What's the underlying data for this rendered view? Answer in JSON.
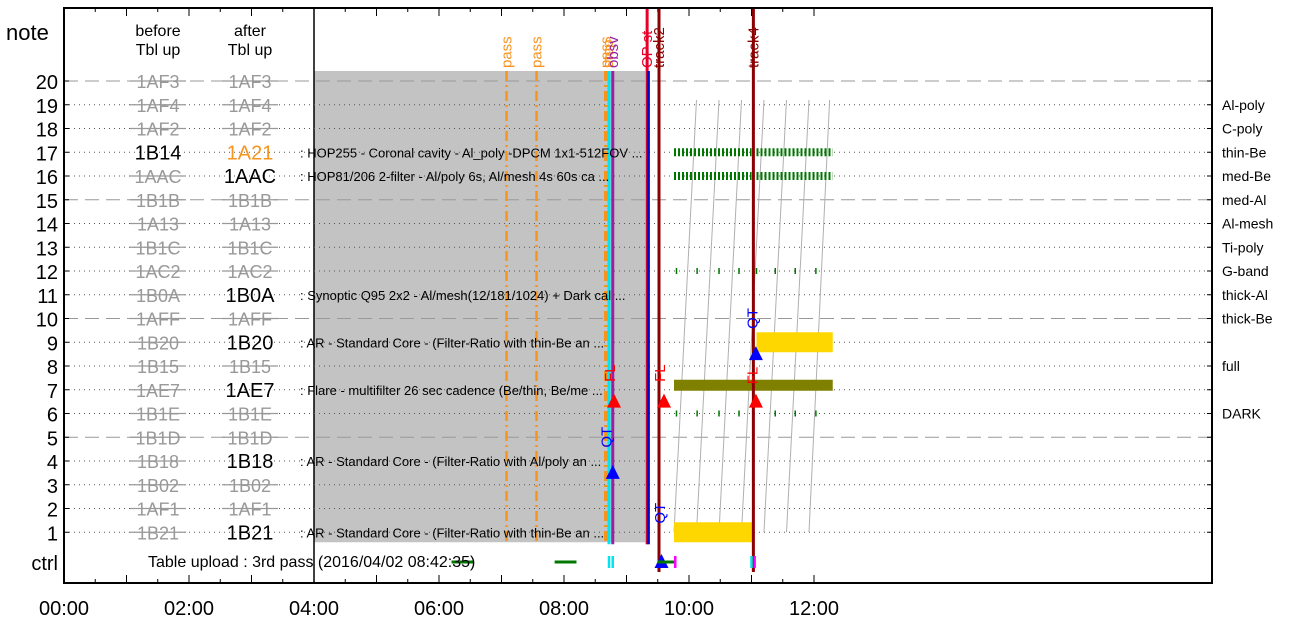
{
  "chart_data": {
    "type": "timeline",
    "y_axis_label": "note",
    "ctrl_label": "ctrl",
    "row_numbers": [
      20,
      19,
      18,
      17,
      16,
      15,
      14,
      13,
      12,
      11,
      10,
      9,
      8,
      7,
      6,
      5,
      4,
      3,
      2,
      1
    ],
    "col_headers": [
      {
        "line1": "before",
        "line2": "Tbl up"
      },
      {
        "line1": "after",
        "line2": "Tbl up"
      }
    ],
    "rows": [
      {
        "n": 20,
        "before": "1AF3",
        "before_state": "struck",
        "after": "1AF3",
        "after_state": "struck",
        "desc": ""
      },
      {
        "n": 19,
        "before": "1AF4",
        "before_state": "struck",
        "after": "1AF4",
        "after_state": "struck",
        "desc": ""
      },
      {
        "n": 18,
        "before": "1AF2",
        "before_state": "struck",
        "after": "1AF2",
        "after_state": "struck",
        "desc": ""
      },
      {
        "n": 17,
        "before": "1B14",
        "before_state": "active",
        "after": "1A21",
        "after_state": "changed",
        "desc": ": HOP255 - Coronal cavity - Al_poly -DPCM 1x1-512FOV ..."
      },
      {
        "n": 16,
        "before": "1AAC",
        "before_state": "struck",
        "after": "1AAC",
        "after_state": "active",
        "desc": ": HOP81/206 2-filter - Al/poly 6s, Al/mesh 4s 60s ca ..."
      },
      {
        "n": 15,
        "before": "1B1B",
        "before_state": "struck",
        "after": "1B1B",
        "after_state": "struck",
        "desc": ""
      },
      {
        "n": 14,
        "before": "1A13",
        "before_state": "struck",
        "after": "1A13",
        "after_state": "struck",
        "desc": ""
      },
      {
        "n": 13,
        "before": "1B1C",
        "before_state": "struck",
        "after": "1B1C",
        "after_state": "struck",
        "desc": ""
      },
      {
        "n": 12,
        "before": "1AC2",
        "before_state": "struck",
        "after": "1AC2",
        "after_state": "struck",
        "desc": ""
      },
      {
        "n": 11,
        "before": "1B0A",
        "before_state": "struck",
        "after": "1B0A",
        "after_state": "active",
        "desc": ": Synoptic Q95 2x2 - Al/mesh(12/181/1024) + Dark cal ..."
      },
      {
        "n": 10,
        "before": "1AFF",
        "before_state": "struck",
        "after": "1AFF",
        "after_state": "struck",
        "desc": ""
      },
      {
        "n": 9,
        "before": "1B20",
        "before_state": "struck",
        "after": "1B20",
        "after_state": "active",
        "desc": ": AR - Standard Core - (Filter-Ratio with thin-Be an ..."
      },
      {
        "n": 8,
        "before": "1B15",
        "before_state": "struck",
        "after": "1B15",
        "after_state": "struck",
        "desc": ""
      },
      {
        "n": 7,
        "before": "1AE7",
        "before_state": "struck",
        "after": "1AE7",
        "after_state": "active",
        "desc": ": Flare - multifilter 26 sec cadence (Be/thin, Be/me ..."
      },
      {
        "n": 6,
        "before": "1B1E",
        "before_state": "struck",
        "after": "1B1E",
        "after_state": "struck",
        "desc": ""
      },
      {
        "n": 5,
        "before": "1B1D",
        "before_state": "struck",
        "after": "1B1D",
        "after_state": "struck",
        "desc": ""
      },
      {
        "n": 4,
        "before": "1B18",
        "before_state": "struck",
        "after": "1B18",
        "after_state": "active",
        "desc": ": AR - Standard Core - (Filter-Ratio with Al/poly an ..."
      },
      {
        "n": 3,
        "before": "1B02",
        "before_state": "struck",
        "after": "1B02",
        "after_state": "struck",
        "desc": ""
      },
      {
        "n": 2,
        "before": "1AF1",
        "before_state": "struck",
        "after": "1AF1",
        "after_state": "struck",
        "desc": ""
      },
      {
        "n": 1,
        "before": "1B21",
        "before_state": "struck",
        "after": "1B21",
        "after_state": "active",
        "desc": ": AR - Standard Core - (Filter-Ratio with thin-Be an ..."
      }
    ],
    "dashed_rows": [
      20,
      15,
      10,
      5
    ],
    "ctrl_text": "Table upload : 3rd pass (2016/04/02 08:42:35)",
    "x_range_hours": [
      0,
      12.3
    ],
    "x_tick_labels": [
      "00:00",
      "02:00",
      "04:00",
      "06:00",
      "08:00",
      "10:00",
      "12:00"
    ],
    "x_tick_hours": [
      0,
      2,
      4,
      6,
      8,
      10,
      12
    ],
    "shaded_range_hours": [
      4.0,
      9.3
    ],
    "filter_labels": [
      {
        "n": 19,
        "text": "Al-poly"
      },
      {
        "n": 18,
        "text": "C-poly"
      },
      {
        "n": 17,
        "text": "thin-Be"
      },
      {
        "n": 16,
        "text": "med-Be"
      },
      {
        "n": 15,
        "text": "med-Al"
      },
      {
        "n": 14,
        "text": "Al-mesh"
      },
      {
        "n": 13,
        "text": "Ti-poly"
      },
      {
        "n": 12,
        "text": "G-band"
      },
      {
        "n": 11,
        "text": "thick-Al"
      },
      {
        "n": 10,
        "text": "thick-Be"
      },
      {
        "n": 8,
        "text": "full"
      },
      {
        "n": 6,
        "text": "DARK"
      }
    ],
    "events": [
      {
        "t": 7.08,
        "label": "pass",
        "color": "#f7941d",
        "style": "dashdot"
      },
      {
        "t": 7.56,
        "label": "pass",
        "color": "#f7941d",
        "style": "dashdot"
      },
      {
        "t": 8.66,
        "label": "pass",
        "color": "#f7941d",
        "style": "dashdot"
      },
      {
        "t": 8.7,
        "label": "stop",
        "color": "#f7941d",
        "style": "dashdot"
      },
      {
        "t": 8.72,
        "label": "",
        "color": "#00e5ee",
        "style": "solid"
      },
      {
        "t": 8.78,
        "label": "obsv",
        "color": "#9b1fa3",
        "style": "solid"
      },
      {
        "t": 9.33,
        "label": "OP st",
        "color": "#e8002a",
        "style": "solid"
      },
      {
        "t": 9.35,
        "label": "",
        "color": "#0000cc",
        "style": "solid"
      },
      {
        "t": 9.52,
        "label": "track2",
        "color": "#8b0000",
        "style": "solid"
      },
      {
        "t": 11.03,
        "label": "track4",
        "color": "#8b0000",
        "style": "solid"
      }
    ],
    "triangles": [
      {
        "t": 8.8,
        "n": 6.5,
        "color": "#ff0000"
      },
      {
        "t": 8.78,
        "n": 3.5,
        "color": "#0000ff"
      },
      {
        "t": 9.6,
        "n": 6.5,
        "color": "#ff0000"
      },
      {
        "t": 11.07,
        "n": 6.5,
        "color": "#ff0000"
      },
      {
        "t": 11.07,
        "n": 8.5,
        "color": "#0000ff"
      },
      {
        "t": 9.56,
        "n": 0.0,
        "color": "#0000ff"
      }
    ],
    "rotated_markers": [
      {
        "t": 8.72,
        "n": 7.7,
        "label": "FL",
        "color": "#ff0000"
      },
      {
        "t": 8.66,
        "n": 5.0,
        "label": "QT",
        "color": "#0000ff"
      },
      {
        "t": 9.52,
        "n": 7.7,
        "label": "FL",
        "color": "#ff0000"
      },
      {
        "t": 9.52,
        "n": 1.8,
        "label": "QT",
        "color": "#0000ff"
      },
      {
        "t": 11.0,
        "n": 7.6,
        "label": "FL",
        "color": "#ff0000"
      },
      {
        "t": 11.0,
        "n": 10.0,
        "label": "QT",
        "color": "#0000ff"
      }
    ],
    "bars": [
      {
        "t0": 9.76,
        "t1": 11.02,
        "n": 1,
        "color": "#ffd700"
      },
      {
        "t0": 11.08,
        "t1": 12.3,
        "n": 9,
        "color": "#ffd700"
      },
      {
        "t0": 9.76,
        "t1": 12.3,
        "n": 7,
        "color": "#808000"
      }
    ],
    "tick_rows": [
      {
        "t0": 9.76,
        "t1": 11.0,
        "n": 17,
        "color": "#007700"
      },
      {
        "t0": 11.08,
        "t1": 12.3,
        "n": 17,
        "color": "#007700"
      },
      {
        "t0": 9.76,
        "t1": 11.0,
        "n": 16,
        "color": "#007700"
      },
      {
        "t0": 11.08,
        "t1": 12.3,
        "n": 16,
        "color": "#007700"
      }
    ],
    "sparse_ticks": [
      {
        "n": 12,
        "times": [
          9.8,
          10.13,
          10.48,
          10.8,
          11.08,
          11.38,
          11.7,
          12.03
        ],
        "color": "#007700"
      },
      {
        "n": 6,
        "times": [
          9.8,
          10.13,
          10.48,
          10.8,
          11.38,
          11.7,
          12.03
        ],
        "color": "#007700"
      }
    ],
    "sawtooth": {
      "t0": 9.76,
      "t1": 12.2,
      "period": 0.36,
      "color": "#b0b0b0"
    },
    "ctrl_segments": [
      {
        "t0": 6.2,
        "t1": 6.55,
        "color": "#007700"
      },
      {
        "t0": 7.85,
        "t1": 8.2,
        "color": "#007700"
      },
      {
        "t0": 9.5,
        "t1": 9.78,
        "color": "#007700"
      }
    ],
    "ctrl_ticks": [
      {
        "t": 8.72,
        "color": "#00e5ee"
      },
      {
        "t": 8.78,
        "color": "#00e5ee"
      },
      {
        "t": 9.78,
        "color": "#ff00ff"
      },
      {
        "t": 11.0,
        "color": "#00e5ee"
      },
      {
        "t": 11.05,
        "color": "#ff00ff"
      }
    ]
  }
}
